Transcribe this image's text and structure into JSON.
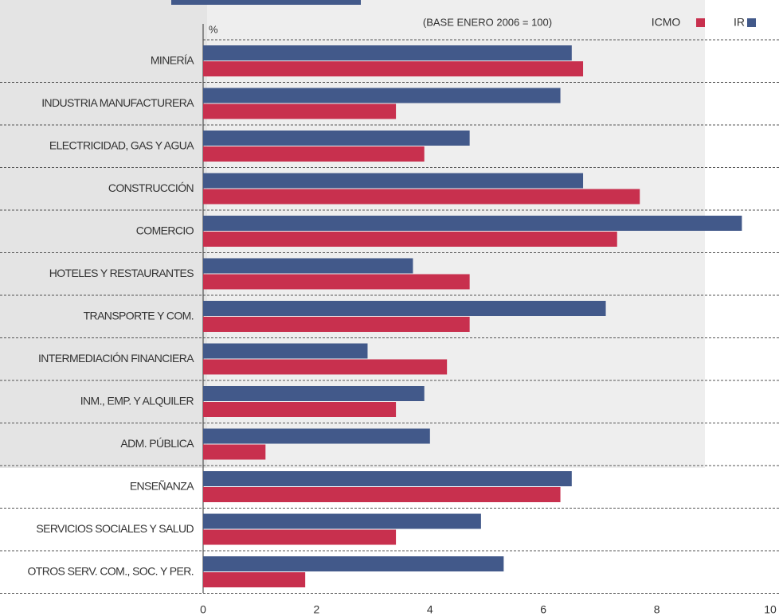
{
  "chart_data": {
    "type": "hbar",
    "subtitle": "(BASE ENERO 2006 = 100)",
    "unit_label": "%",
    "categories": [
      "MINERÍA",
      "INDUSTRIA MANUFACTURERA",
      "ELECTRICIDAD, GAS Y AGUA",
      "CONSTRUCCIÓN",
      "COMERCIO",
      "HOTELES Y RESTAURANTES",
      "TRANSPORTE Y COM.",
      "INTERMEDIACIÓN FINANCIERA",
      "INM., EMP. Y ALQUILER",
      "ADM. PÚBLICA",
      "ENSEÑANZA",
      "SERVICIOS SOCIALES Y SALUD",
      "OTROS SERV. COM., SOC. Y PER."
    ],
    "series": [
      {
        "name": "ICMO",
        "color": "#c8304e",
        "values": [
          6.7,
          3.4,
          3.9,
          7.7,
          7.3,
          4.7,
          4.7,
          4.3,
          3.4,
          1.1,
          6.3,
          3.4,
          1.8
        ]
      },
      {
        "name": "IR",
        "color": "#42598a",
        "values": [
          6.5,
          6.3,
          4.7,
          6.7,
          9.5,
          3.7,
          7.1,
          2.9,
          3.9,
          4.0,
          6.5,
          4.9,
          5.3
        ]
      }
    ],
    "xlim": [
      0,
      10
    ],
    "xticks": [
      0,
      2,
      4,
      6,
      8,
      10
    ]
  }
}
